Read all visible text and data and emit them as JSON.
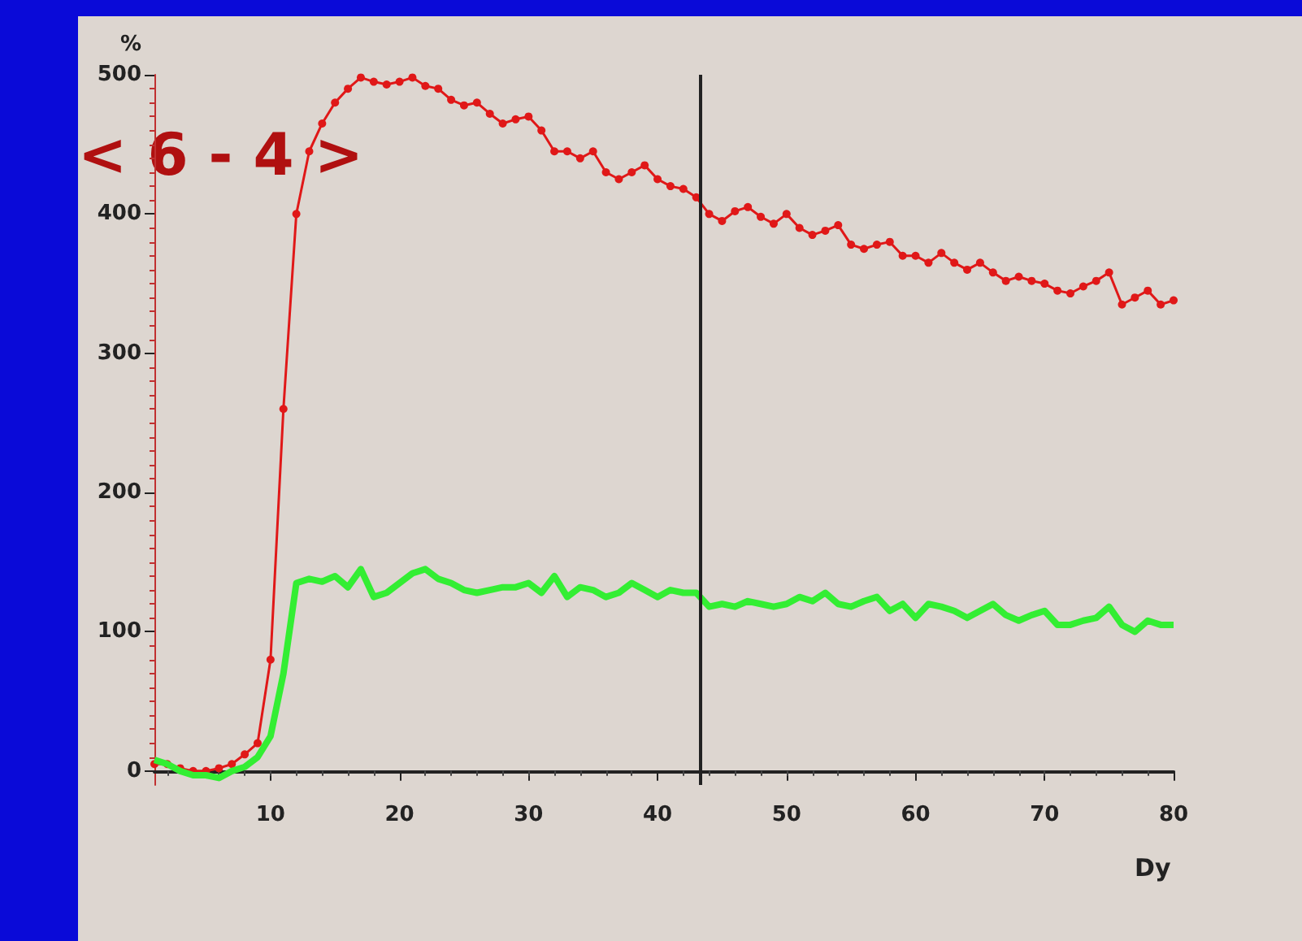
{
  "chart_data": {
    "type": "line",
    "xlabel": "Dy",
    "ylabel": "%",
    "annotations": [
      "< 6 - 4 >"
    ],
    "x": [
      1,
      2,
      3,
      4,
      5,
      6,
      7,
      8,
      9,
      10,
      11,
      12,
      13,
      14,
      15,
      16,
      17,
      18,
      19,
      20,
      21,
      22,
      23,
      24,
      25,
      26,
      27,
      28,
      29,
      30,
      31,
      32,
      33,
      34,
      35,
      36,
      37,
      38,
      39,
      40,
      41,
      42,
      43,
      44,
      45,
      46,
      47,
      48,
      49,
      50,
      51,
      52,
      53,
      54,
      55,
      56,
      57,
      58,
      59,
      60,
      61,
      62,
      63,
      64,
      65,
      66,
      67,
      68,
      69,
      70,
      71,
      72,
      73,
      74,
      75,
      76,
      77,
      78,
      79,
      80
    ],
    "series": [
      {
        "color": "#e01818",
        "marker": "circle",
        "values": [
          5,
          5,
          2,
          0,
          0,
          2,
          5,
          12,
          20,
          80,
          260,
          400,
          445,
          465,
          480,
          490,
          498,
          495,
          493,
          495,
          498,
          492,
          490,
          482,
          478,
          480,
          472,
          465,
          468,
          470,
          460,
          445,
          445,
          440,
          445,
          430,
          425,
          430,
          435,
          425,
          420,
          418,
          412,
          400,
          395,
          402,
          405,
          398,
          393,
          400,
          390,
          385,
          388,
          392,
          378,
          375,
          378,
          380,
          370,
          370,
          365,
          372,
          365,
          360,
          365,
          358,
          352,
          355,
          352,
          350,
          345,
          343,
          348,
          352,
          358,
          335,
          340,
          345,
          335,
          338
        ]
      },
      {
        "color": "#33ee33",
        "marker": "none",
        "values": [
          8,
          5,
          0,
          -3,
          -3,
          -5,
          0,
          3,
          10,
          25,
          70,
          135,
          138,
          136,
          140,
          132,
          145,
          125,
          128,
          135,
          142,
          145,
          138,
          135,
          130,
          128,
          130,
          132,
          132,
          135,
          128,
          140,
          125,
          132,
          130,
          125,
          128,
          135,
          130,
          125,
          130,
          128,
          128,
          118,
          120,
          118,
          122,
          120,
          118,
          120,
          125,
          122,
          128,
          120,
          118,
          122,
          125,
          115,
          120,
          110,
          120,
          118,
          115,
          110,
          115,
          120,
          112,
          108,
          112,
          115,
          105,
          105,
          108,
          110,
          118,
          105,
          100,
          108,
          105,
          105
        ]
      }
    ],
    "xlim": [
      1,
      80
    ],
    "xticks": [
      10,
      20,
      30,
      40,
      50,
      60,
      70,
      80
    ],
    "ylim": [
      -10,
      500
    ],
    "yticks": [
      0,
      100,
      200,
      300,
      400,
      500
    ],
    "ref_lines": [
      {
        "axis": "x",
        "value": 43.3,
        "color": "#222222"
      }
    ],
    "grid": false
  }
}
